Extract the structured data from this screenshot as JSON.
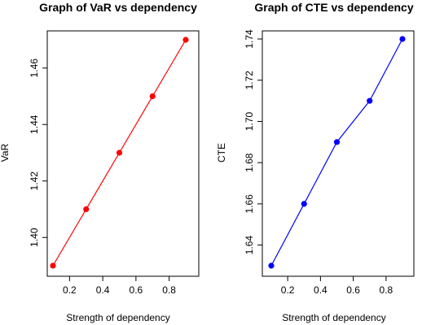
{
  "chart_data": [
    {
      "type": "line",
      "title": "Graph of VaR vs dependency",
      "xlabel": "Strength of dependency",
      "ylabel": "VaR",
      "x": [
        0.1,
        0.3,
        0.5,
        0.7,
        0.9
      ],
      "series": [
        {
          "values": [
            1.39,
            1.41,
            1.43,
            1.45,
            1.47
          ],
          "color": "#ff0000"
        }
      ],
      "xlim": [
        0.1,
        0.9
      ],
      "ylim": [
        1.39,
        1.47
      ],
      "xticks": [
        0.2,
        0.4,
        0.6,
        0.8
      ],
      "xtick_labels": [
        "0.2",
        "0.4",
        "0.6",
        "0.8"
      ],
      "yticks": [
        1.4,
        1.42,
        1.44,
        1.46
      ],
      "ytick_labels": [
        "1.40",
        "1.42",
        "1.44",
        "1.46"
      ],
      "grid": false,
      "markers": true
    },
    {
      "type": "line",
      "title": "Graph of CTE vs dependency",
      "xlabel": "Strength of dependency",
      "ylabel": "CTE",
      "x": [
        0.1,
        0.3,
        0.5,
        0.7,
        0.9
      ],
      "series": [
        {
          "values": [
            1.63,
            1.66,
            1.69,
            1.71,
            1.74
          ],
          "color": "#0000ff"
        }
      ],
      "xlim": [
        0.1,
        0.9
      ],
      "ylim": [
        1.63,
        1.74
      ],
      "xticks": [
        0.2,
        0.4,
        0.6,
        0.8
      ],
      "xtick_labels": [
        "0.2",
        "0.4",
        "0.6",
        "0.8"
      ],
      "yticks": [
        1.64,
        1.66,
        1.68,
        1.7,
        1.72,
        1.74
      ],
      "ytick_labels": [
        "1.64",
        "1.66",
        "1.68",
        "1.70",
        "1.72",
        "1.74"
      ],
      "grid": false,
      "markers": true
    }
  ]
}
